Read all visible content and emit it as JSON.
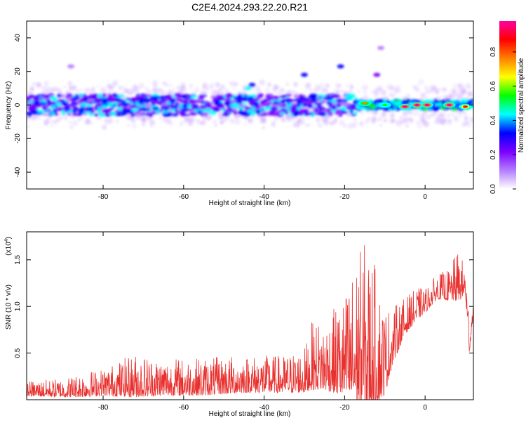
{
  "title": "C2E4.2024.293.22.20.R21",
  "chart_data": [
    {
      "type": "heatmap",
      "xlabel": "Height of straight line (km)",
      "ylabel": "Frequency (Hz)",
      "xlim": [
        -99,
        12
      ],
      "ylim": [
        -50,
        50
      ],
      "xticks": [
        -80,
        -60,
        -40,
        -20,
        0
      ],
      "xtick_labels": [
        "-80",
        "-60",
        "-40",
        "-20",
        "0"
      ],
      "yticks": [
        -40,
        -20,
        0,
        20,
        40
      ],
      "ytick_labels": [
        "-40",
        "-20",
        "0",
        "20",
        "40"
      ],
      "colorbar": {
        "label": "Normalized spectral amplitude",
        "range": [
          0,
          0.98
        ],
        "ticks": [
          0.0,
          0.2,
          0.4,
          0.6,
          0.8
        ],
        "tick_labels": [
          "0.0",
          "0.2",
          "0.4",
          "0.6",
          "0.8"
        ],
        "colors": [
          "#ffffff",
          "#b27dff",
          "#7b00ff",
          "#0000ff",
          "#00ffff",
          "#00ff00",
          "#ffff00",
          "#ff8000",
          "#ff0000",
          "#ff00a0"
        ]
      },
      "band": {
        "center_freq_hz": 0,
        "half_width_hz": 6,
        "strong_segments_km": [
          [
            -17,
            12
          ]
        ],
        "peaks": [
          {
            "x": -5,
            "y": -1,
            "amp": 0.92
          },
          {
            "x": -2,
            "y": 0,
            "amp": 0.95
          },
          {
            "x": 0.5,
            "y": 0,
            "amp": 0.9
          },
          {
            "x": 6,
            "y": 0,
            "amp": 0.92
          },
          {
            "x": 10,
            "y": -1,
            "amp": 0.85
          },
          {
            "x": -15,
            "y": 1,
            "amp": 0.7
          },
          {
            "x": -10,
            "y": 0,
            "amp": 0.55
          }
        ],
        "outliers": [
          {
            "x": -44,
            "y": 10,
            "amp": 0.35
          },
          {
            "x": -43,
            "y": 12,
            "amp": 0.3
          },
          {
            "x": -30,
            "y": 18,
            "amp": 0.25
          },
          {
            "x": -21,
            "y": 23,
            "amp": 0.25
          },
          {
            "x": -12,
            "y": 18,
            "amp": 0.2
          },
          {
            "x": -88,
            "y": 23,
            "amp": 0.1
          },
          {
            "x": -11,
            "y": 34,
            "amp": 0.1
          }
        ]
      }
    },
    {
      "type": "line",
      "xlabel": "Height of straight line (km)",
      "ylabel": "SNR (10 * v/v)",
      "y_multiplier": "(x10",
      "y_multiplier_exp": "4",
      "y_multiplier_close": ")",
      "xlim": [
        -99,
        12
      ],
      "ylim": [
        0,
        1.8
      ],
      "xticks": [
        -80,
        -60,
        -40,
        -20,
        0
      ],
      "xtick_labels": [
        "-80",
        "-60",
        "-40",
        "-20",
        "0"
      ],
      "yticks": [
        0.5,
        1.0,
        1.5
      ],
      "ytick_labels": [
        "0.5",
        "1.0",
        "1.5"
      ],
      "color": "#e8312f",
      "envelope": {
        "x": [
          -99,
          -90,
          -85,
          -80,
          -72,
          -65,
          -55,
          -45,
          -35,
          -30,
          -28,
          -25,
          -20,
          -17,
          -15,
          -13,
          -10,
          -8,
          -5,
          -2,
          0,
          3,
          6,
          8,
          10,
          11,
          12
        ],
        "base": [
          0.08,
          0.08,
          0.1,
          0.12,
          0.15,
          0.15,
          0.15,
          0.18,
          0.18,
          0.2,
          0.3,
          0.3,
          0.32,
          0.35,
          0.35,
          0.35,
          0.3,
          0.55,
          0.8,
          0.95,
          1.0,
          1.15,
          1.15,
          1.2,
          1.2,
          0.6,
          0.95
        ],
        "spread": [
          0.12,
          0.15,
          0.2,
          0.22,
          0.35,
          0.3,
          0.3,
          0.3,
          0.3,
          0.35,
          0.55,
          0.55,
          0.8,
          1.2,
          1.35,
          1.2,
          0.7,
          0.45,
          0.3,
          0.25,
          0.2,
          0.2,
          0.25,
          0.4,
          0.25,
          0.3,
          0.1
        ]
      }
    }
  ]
}
